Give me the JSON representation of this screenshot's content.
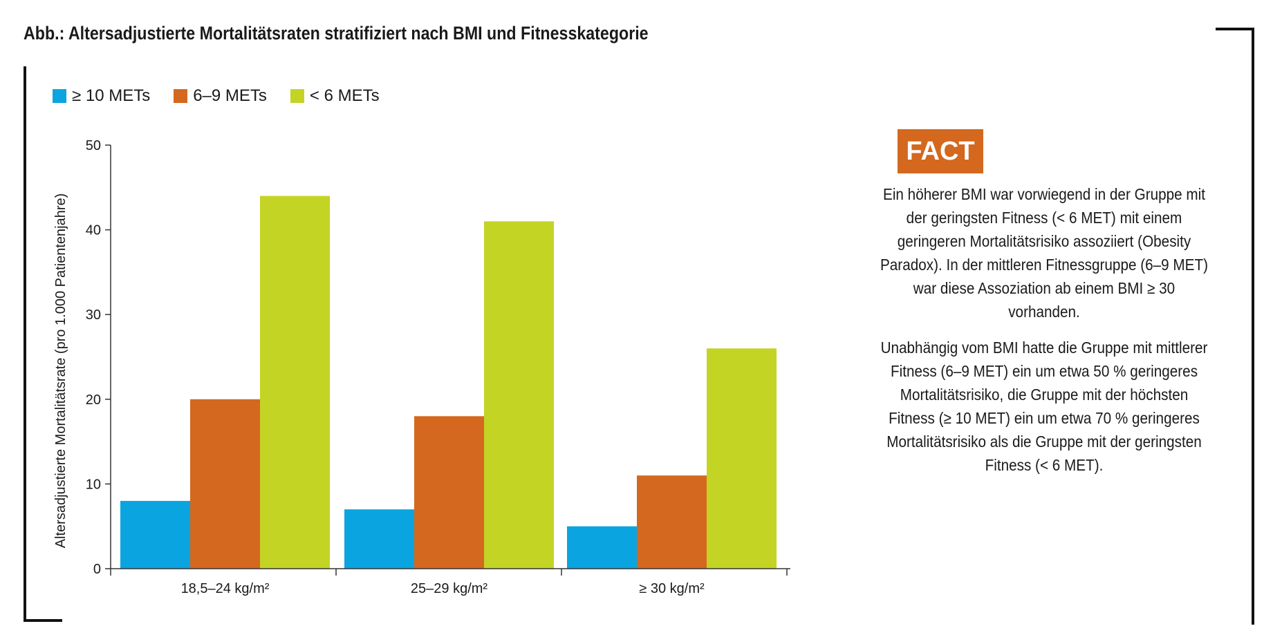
{
  "title": "Abb.: Altersadjustierte Mortalitätsraten stratifiziert nach BMI und Fitnesskategorie",
  "colors": {
    "high": "#0aa5e0",
    "mid": "#d4681e",
    "low": "#c3d424",
    "fact": "#d4681e"
  },
  "chart_data": {
    "type": "bar",
    "categories": [
      "18,5–24 kg/m²",
      "25–29 kg/m²",
      "≥ 30 kg/m²"
    ],
    "series": [
      {
        "name": "≥ 10 METs",
        "values": [
          8,
          7,
          5
        ]
      },
      {
        "name": "6–9 METs",
        "values": [
          20,
          18,
          11
        ]
      },
      {
        "name": "< 6 METs",
        "values": [
          44,
          41,
          26
        ]
      }
    ],
    "ylabel": "Altersadjustierte Mortalitätsrate (pro 1.000 Patientenjahre)",
    "xlabel": "",
    "ylim": [
      0,
      50
    ],
    "yticks": [
      0,
      10,
      20,
      30,
      40,
      50
    ],
    "legend": "top-left",
    "grid": false
  },
  "fact": {
    "label": "FACT",
    "paragraph1": "Ein höherer BMI war vorwiegend in der Gruppe mit der geringsten Fitness (< 6 MET) mit einem geringeren Mortalitätsrisiko assoziiert (Obesity Paradox). In der mittleren Fitnessgruppe (6–9 MET) war diese Assoziation ab einem BMI ≥ 30 vorhanden.",
    "paragraph2": "Unabhängig vom BMI hatte die Gruppe mit mittlerer Fitness (6–9 MET) ein um etwa 50 % geringeres Mortalitätsrisiko, die Gruppe mit der höchsten Fitness (≥ 10 MET) ein um etwa 70 % geringeres Mortalitätsrisiko als die Gruppe mit der geringsten Fitness (< 6 MET)."
  }
}
